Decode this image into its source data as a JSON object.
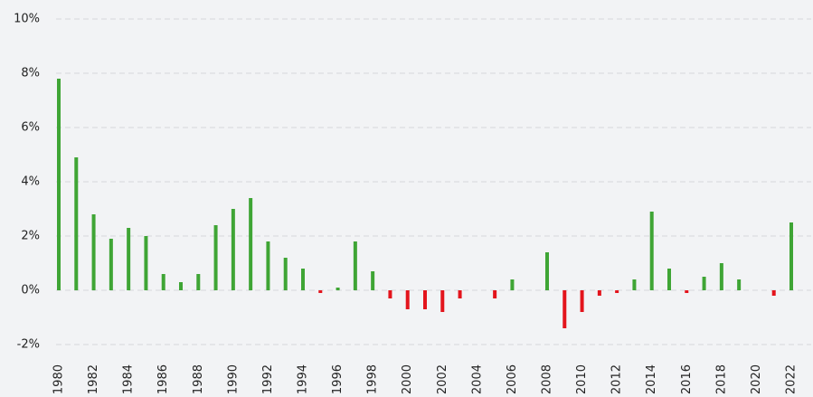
{
  "chart_data": {
    "type": "bar",
    "categories": [
      "1980",
      null,
      "1982",
      null,
      "1984",
      null,
      "1986",
      null,
      "1988",
      null,
      "1990",
      null,
      "1992",
      null,
      "1994",
      null,
      "1996",
      null,
      "1998",
      null,
      "2000",
      null,
      "2002",
      null,
      "2004",
      null,
      "2006",
      null,
      "2008",
      null,
      "2010",
      null,
      "2012",
      null,
      "2014",
      null,
      "2016",
      null,
      "2018",
      null,
      "2020",
      null,
      "2022"
    ],
    "values": [
      7.8,
      4.9,
      2.8,
      1.9,
      2.3,
      2.0,
      0.6,
      0.3,
      0.6,
      2.4,
      3.0,
      3.4,
      1.8,
      1.2,
      0.8,
      -0.1,
      0.1,
      1.8,
      0.7,
      -0.3,
      -0.7,
      -0.7,
      -0.8,
      -0.3,
      0,
      -0.3,
      0.4,
      0,
      1.4,
      -1.4,
      -0.8,
      -0.2,
      -0.1,
      0.4,
      2.9,
      0.8,
      -0.1,
      0.5,
      1.0,
      0.4,
      0,
      -0.2,
      2.5
    ],
    "positive_color": "#3fa535",
    "negative_color": "#e3141c",
    "ylim": [
      -2.5,
      10
    ],
    "yticks": [
      {
        "value": -2,
        "label": "-2%"
      },
      {
        "value": 0,
        "label": "0%"
      },
      {
        "value": 2,
        "label": "2%"
      },
      {
        "value": 4,
        "label": "4%"
      },
      {
        "value": 6,
        "label": "6%"
      },
      {
        "value": 8,
        "label": "8%"
      },
      {
        "value": 10,
        "label": "10%"
      }
    ],
    "grid": true
  }
}
